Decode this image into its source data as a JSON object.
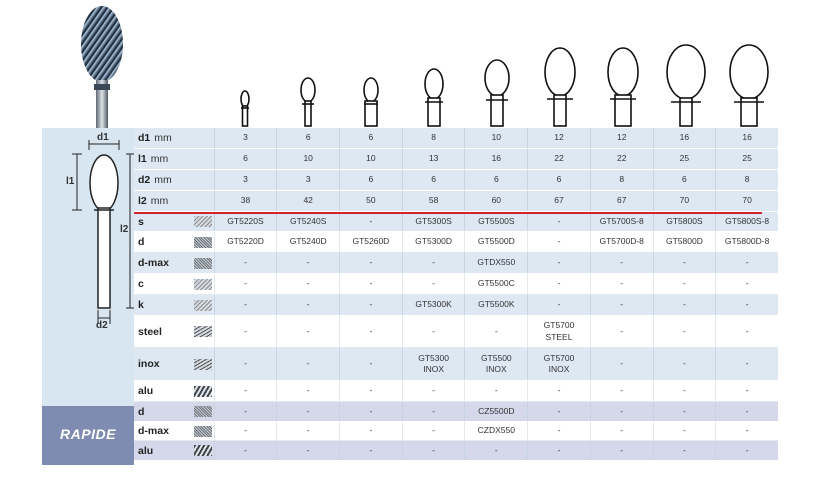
{
  "diagram": {
    "d1_label": "d1",
    "l1_label": "l1",
    "l2_label": "l2",
    "d2_label": "d2"
  },
  "rapide_label": "RAPIDE",
  "dimensions": [
    {
      "name": "d1",
      "unit": "mm",
      "values": [
        "3",
        "6",
        "6",
        "8",
        "10",
        "12",
        "12",
        "16",
        "16"
      ]
    },
    {
      "name": "l1",
      "unit": "mm",
      "values": [
        "6",
        "10",
        "10",
        "13",
        "16",
        "22",
        "22",
        "25",
        "25"
      ]
    },
    {
      "name": "d2",
      "unit": "mm",
      "values": [
        "3",
        "3",
        "6",
        "6",
        "6",
        "6",
        "8",
        "6",
        "8"
      ]
    },
    {
      "name": "l2",
      "unit": "mm",
      "values": [
        "38",
        "42",
        "50",
        "58",
        "60",
        "67",
        "67",
        "70",
        "70"
      ]
    }
  ],
  "cuts": [
    {
      "name": "s",
      "values": [
        "GT5220S",
        "GT5240S",
        "-",
        "GT5300S",
        "GT5500S",
        "-",
        "GT5700S-8",
        "GT5800S",
        "GT5800S-8"
      ]
    },
    {
      "name": "d",
      "values": [
        "GT5220D",
        "GT5240D",
        "GT5260D",
        "GT5300D",
        "GT5500D",
        "-",
        "GT5700D-8",
        "GT5800D",
        "GT5800D-8"
      ]
    },
    {
      "name": "d-max",
      "values": [
        "-",
        "-",
        "-",
        "-",
        "GTDX550",
        "-",
        "-",
        "-",
        "-"
      ]
    },
    {
      "name": "c",
      "values": [
        "-",
        "-",
        "-",
        "-",
        "GT5500C",
        "-",
        "-",
        "-",
        "-"
      ]
    },
    {
      "name": "k",
      "values": [
        "-",
        "-",
        "-",
        "GT5300K",
        "GT5500K",
        "-",
        "-",
        "-",
        "-"
      ]
    },
    {
      "name": "steel",
      "values": [
        "-",
        "-",
        "-",
        "-",
        "-",
        "GT5700\nSTEEL",
        "-",
        "-",
        "-"
      ]
    },
    {
      "name": "inox",
      "values": [
        "-",
        "-",
        "-",
        "GT5300\nINOX",
        "GT5500\nINOX",
        "GT5700\nINOX",
        "-",
        "-",
        "-"
      ]
    },
    {
      "name": "alu",
      "values": [
        "-",
        "-",
        "-",
        "-",
        "-",
        "-",
        "-",
        "-",
        "-"
      ]
    }
  ],
  "rapide": [
    {
      "name": "d",
      "values": [
        "-",
        "-",
        "-",
        "-",
        "CZ5500D",
        "-",
        "-",
        "-",
        "-"
      ]
    },
    {
      "name": "d-max",
      "values": [
        "-",
        "-",
        "-",
        "-",
        "CZDX550",
        "-",
        "-",
        "-",
        "-"
      ]
    },
    {
      "name": "alu",
      "values": [
        "-",
        "-",
        "-",
        "-",
        "-",
        "-",
        "-",
        "-",
        "-"
      ]
    }
  ],
  "colors": {
    "band": "#dde8f3",
    "panel": "#d8e6f2",
    "rapide_panel": "#7d8cb0",
    "accent_line": "#d2232a"
  }
}
